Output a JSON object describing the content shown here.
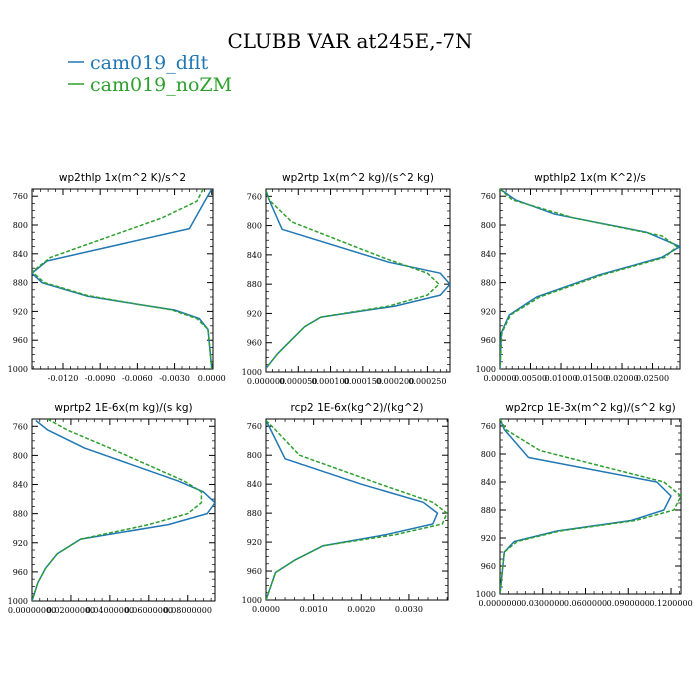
{
  "figure": {
    "title": "CLUBB VAR at245E,-7N",
    "legend": [
      {
        "label": "cam019_dflt",
        "color": "#1f77b4"
      },
      {
        "label": "cam019_noZM",
        "color": "#2ca02c"
      }
    ]
  },
  "chart_data": [
    {
      "type": "line",
      "title": "wp2thlp  1x(m^2 K)/s^2",
      "xlim": [
        -0.0145,
        0.0001
      ],
      "ylim": [
        1000,
        750
      ],
      "x_ticks": [
        -0.012,
        -0.009,
        -0.006,
        -0.003,
        0.0
      ],
      "x_tick_labels": [
        "-0.0120",
        "-0.0090",
        "-0.0060",
        "-0.0030",
        "0.0000"
      ],
      "y_ticks": [
        760,
        800,
        840,
        880,
        920,
        960,
        1000
      ],
      "y_tick_labels": [
        "760",
        "800",
        "840",
        "880",
        "920",
        "960",
        "1000"
      ],
      "grid": false,
      "series": [
        {
          "name": "cam019_dflt",
          "color": "#1f77b4",
          "dashed": false,
          "x": [
            0.0,
            -0.0005,
            -0.0018,
            -0.0133,
            -0.0145,
            -0.0137,
            -0.01,
            -0.006,
            -0.003,
            -0.001,
            -0.0003,
            0.0
          ],
          "y": [
            750,
            765,
            805,
            850,
            867,
            880,
            899,
            910,
            918,
            930,
            945,
            1000
          ]
        },
        {
          "name": "cam019_noZM",
          "color": "#2ca02c",
          "dashed": true,
          "x": [
            -0.0007,
            -0.0012,
            -0.004,
            -0.013,
            -0.0145,
            -0.0135,
            -0.01,
            -0.006,
            -0.0032,
            -0.0012,
            -0.0003,
            0.0
          ],
          "y": [
            750,
            767,
            790,
            845,
            865,
            880,
            898,
            910,
            918,
            930,
            945,
            1000
          ]
        }
      ]
    },
    {
      "type": "line",
      "title": "wp2rtp  1x(m^2 kg)/(s^2 kg)",
      "xlim": [
        0.0,
        0.000285
      ],
      "ylim": [
        1000,
        750
      ],
      "x_ticks": [
        0.0,
        5e-05,
        0.0001,
        0.00015,
        0.0002,
        0.00025
      ],
      "x_tick_labels": [
        "0.000000",
        "0.000050",
        "0.000100",
        "0.000150",
        "0.000200",
        "0.000250"
      ],
      "y_ticks": [
        760,
        800,
        840,
        880,
        920,
        960,
        1000
      ],
      "y_tick_labels": [
        "760",
        "800",
        "840",
        "880",
        "920",
        "960",
        "1000"
      ],
      "grid": false,
      "series": [
        {
          "name": "cam019_dflt",
          "color": "#1f77b4",
          "dashed": false,
          "x": [
            0.0,
            5e-06,
            2.5e-05,
            0.00019,
            0.00027,
            0.000285,
            0.00027,
            0.0002,
            8.5e-05,
            6e-05,
            3.5e-05,
            1.8e-05,
            0.0
          ],
          "y": [
            752,
            765,
            805,
            850,
            865,
            880,
            895,
            910,
            925,
            938,
            960,
            975,
            995
          ]
        },
        {
          "name": "cam019_noZM",
          "color": "#2ca02c",
          "dashed": true,
          "x": [
            0.0,
            5e-06,
            4e-05,
            0.000185,
            0.00025,
            0.000268,
            0.00025,
            0.00019,
            8.5e-05,
            6e-05,
            3.5e-05,
            1.8e-05,
            0.0
          ],
          "y": [
            752,
            765,
            795,
            845,
            865,
            880,
            895,
            910,
            925,
            938,
            960,
            975,
            995
          ]
        }
      ]
    },
    {
      "type": "line",
      "title": "wpthlp2  1x(m K^2)/s",
      "xlim": [
        0.0,
        0.0295
      ],
      "ylim": [
        1000,
        750
      ],
      "x_ticks": [
        0.0,
        0.005,
        0.01,
        0.015,
        0.02,
        0.025
      ],
      "x_tick_labels": [
        "0.00000",
        "0.00500",
        "0.01000",
        "0.01500",
        "0.02000",
        "0.02500"
      ],
      "y_ticks": [
        760,
        800,
        840,
        880,
        920,
        960,
        1000
      ],
      "y_tick_labels": [
        "760",
        "800",
        "840",
        "880",
        "920",
        "960",
        "1000"
      ],
      "grid": false,
      "series": [
        {
          "name": "cam019_dflt",
          "color": "#1f77b4",
          "dashed": false,
          "x": [
            0.0,
            0.0025,
            0.009,
            0.024,
            0.0295,
            0.0265,
            0.016,
            0.006,
            0.0015,
            0.0002,
            0.0
          ],
          "y": [
            750,
            765,
            785,
            810,
            830,
            845,
            870,
            900,
            925,
            950,
            1000
          ]
        },
        {
          "name": "cam019_noZM",
          "color": "#2ca02c",
          "dashed": true,
          "x": [
            0.0,
            0.002,
            0.012,
            0.0265,
            0.029,
            0.027,
            0.0165,
            0.0065,
            0.0017,
            0.0003,
            0.0
          ],
          "y": [
            750,
            765,
            790,
            815,
            830,
            845,
            870,
            900,
            925,
            950,
            1000
          ]
        }
      ]
    },
    {
      "type": "line",
      "title": "wprtp2  1E-6x(m kg)/(s kg)",
      "xlim": [
        0.0,
        0.094
      ],
      "ylim": [
        1000,
        750
      ],
      "x_ticks": [
        0.0,
        0.02,
        0.04,
        0.06,
        0.08
      ],
      "x_tick_labels": [
        "0.00000000",
        "0.02000000",
        "0.04000000",
        "0.06000000",
        "0.08000000"
      ],
      "y_ticks": [
        760,
        800,
        840,
        880,
        920,
        960,
        1000
      ],
      "y_tick_labels": [
        "760",
        "800",
        "840",
        "880",
        "920",
        "960",
        "1000"
      ],
      "grid": false,
      "series": [
        {
          "name": "cam019_dflt",
          "color": "#1f77b4",
          "dashed": false,
          "x": [
            0.002,
            0.008,
            0.027,
            0.075,
            0.088,
            0.094,
            0.09,
            0.07,
            0.025,
            0.013,
            0.007,
            0.003,
            0.0
          ],
          "y": [
            752,
            765,
            790,
            835,
            850,
            865,
            880,
            895,
            915,
            935,
            955,
            975,
            1000
          ]
        },
        {
          "name": "cam019_noZM",
          "color": "#2ca02c",
          "dashed": true,
          "x": [
            0.008,
            0.018,
            0.04,
            0.078,
            0.087,
            0.087,
            0.08,
            0.06,
            0.025,
            0.013,
            0.007,
            0.003,
            0.0
          ],
          "y": [
            750,
            765,
            790,
            835,
            850,
            865,
            880,
            895,
            915,
            935,
            955,
            975,
            1000
          ]
        }
      ]
    },
    {
      "type": "line",
      "title": "rcp2  1E-6x(kg^2)/(kg^2)",
      "xlim": [
        0.0,
        0.00382
      ],
      "ylim": [
        1000,
        750
      ],
      "x_ticks": [
        0.0,
        0.001,
        0.002,
        0.003
      ],
      "x_tick_labels": [
        "0.0000",
        "0.0010",
        "0.0020",
        "0.0030"
      ],
      "y_ticks": [
        760,
        800,
        840,
        880,
        920,
        960,
        1000
      ],
      "y_tick_labels": [
        "760",
        "800",
        "840",
        "880",
        "920",
        "960",
        "1000"
      ],
      "grid": false,
      "series": [
        {
          "name": "cam019_dflt",
          "color": "#1f77b4",
          "dashed": false,
          "x": [
            0.0,
            0.0001,
            0.0004,
            0.002,
            0.0033,
            0.0036,
            0.0035,
            0.0025,
            0.0012,
            0.0006,
            0.0002,
            0.0
          ],
          "y": [
            752,
            765,
            805,
            840,
            865,
            880,
            895,
            910,
            925,
            945,
            962,
            1000
          ]
        },
        {
          "name": "cam019_noZM",
          "color": "#2ca02c",
          "dashed": true,
          "x": [
            0.0,
            0.0002,
            0.0007,
            0.0024,
            0.0035,
            0.0038,
            0.0037,
            0.0027,
            0.0012,
            0.0006,
            0.0002,
            0.0
          ],
          "y": [
            752,
            765,
            800,
            840,
            865,
            880,
            895,
            910,
            925,
            945,
            962,
            1000
          ]
        }
      ]
    },
    {
      "type": "line",
      "title": "wp2rcp  1E-3x(m^2 kg)/(s^2 kg)",
      "xlim": [
        0.0,
        0.127
      ],
      "ylim": [
        1000,
        750
      ],
      "x_ticks": [
        0.0,
        0.03,
        0.06,
        0.09,
        0.12
      ],
      "x_tick_labels": [
        "0.0000000",
        "0.0300000",
        "0.0600000",
        "0.0900000",
        "0.1200000"
      ],
      "y_ticks": [
        760,
        800,
        840,
        880,
        920,
        960,
        1000
      ],
      "y_tick_labels": [
        "760",
        "800",
        "840",
        "880",
        "920",
        "960",
        "1000"
      ],
      "grid": false,
      "series": [
        {
          "name": "cam019_dflt",
          "color": "#1f77b4",
          "dashed": false,
          "x": [
            0.0,
            0.003,
            0.02,
            0.11,
            0.12,
            0.115,
            0.092,
            0.04,
            0.01,
            0.003,
            0.0
          ],
          "y": [
            750,
            765,
            805,
            840,
            860,
            880,
            895,
            910,
            925,
            940,
            1000
          ]
        },
        {
          "name": "cam019_noZM",
          "color": "#2ca02c",
          "dashed": true,
          "x": [
            0.0,
            0.004,
            0.028,
            0.115,
            0.127,
            0.122,
            0.095,
            0.042,
            0.012,
            0.003,
            0.0
          ],
          "y": [
            750,
            765,
            795,
            840,
            860,
            880,
            895,
            910,
            925,
            940,
            1000
          ]
        }
      ]
    }
  ]
}
